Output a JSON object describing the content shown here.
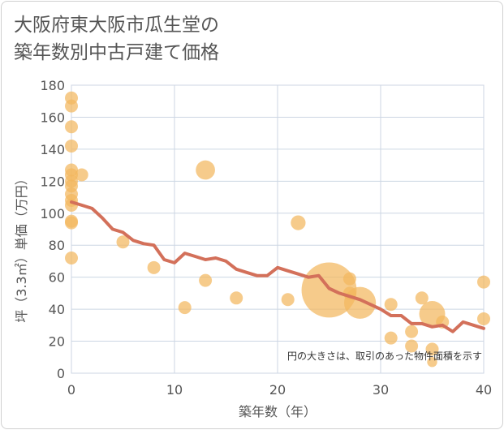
{
  "title_lines": [
    "大阪府東大阪市瓜生堂の",
    "築年数別中古戸建て価格"
  ],
  "chart_data": {
    "type": "scatter",
    "title": "大阪府東大阪市瓜生堂の築年数別中古戸建て価格",
    "xlabel": "築年数（年）",
    "ylabel": "坪（3.3㎡）単価（万円）",
    "xlim": [
      0,
      40
    ],
    "ylim": [
      0,
      180
    ],
    "x_ticks": [
      0,
      10,
      20,
      30,
      40
    ],
    "y_ticks": [
      0,
      20,
      40,
      60,
      80,
      100,
      120,
      140,
      160,
      180
    ],
    "grid": true,
    "note": "円の大きさは、取引のあった物件面積を示す",
    "colors": {
      "bubble": "#f3b75e",
      "line": "#d3705a"
    },
    "points": [
      {
        "x": 0,
        "y": 172,
        "s": 1
      },
      {
        "x": 0,
        "y": 167,
        "s": 1
      },
      {
        "x": 0,
        "y": 154,
        "s": 1
      },
      {
        "x": 0,
        "y": 142,
        "s": 1
      },
      {
        "x": 0,
        "y": 127,
        "s": 1
      },
      {
        "x": 0,
        "y": 124,
        "s": 1
      },
      {
        "x": 0,
        "y": 120,
        "s": 1
      },
      {
        "x": 0,
        "y": 117,
        "s": 1
      },
      {
        "x": 0,
        "y": 112,
        "s": 1
      },
      {
        "x": 0,
        "y": 108,
        "s": 1
      },
      {
        "x": 0,
        "y": 105,
        "s": 1
      },
      {
        "x": 0,
        "y": 95,
        "s": 1
      },
      {
        "x": 0,
        "y": 94,
        "s": 1
      },
      {
        "x": 0,
        "y": 72,
        "s": 1
      },
      {
        "x": 1,
        "y": 124,
        "s": 1
      },
      {
        "x": 5,
        "y": 82,
        "s": 1
      },
      {
        "x": 8,
        "y": 66,
        "s": 1
      },
      {
        "x": 11,
        "y": 41,
        "s": 1
      },
      {
        "x": 13,
        "y": 127,
        "s": 2.2
      },
      {
        "x": 13,
        "y": 58,
        "s": 1
      },
      {
        "x": 16,
        "y": 47,
        "s": 1
      },
      {
        "x": 21,
        "y": 46,
        "s": 1
      },
      {
        "x": 22,
        "y": 94,
        "s": 1.3
      },
      {
        "x": 25,
        "y": 52,
        "s": 18
      },
      {
        "x": 27,
        "y": 59,
        "s": 1
      },
      {
        "x": 27,
        "y": 50,
        "s": 1
      },
      {
        "x": 28,
        "y": 44,
        "s": 6
      },
      {
        "x": 31,
        "y": 43,
        "s": 1
      },
      {
        "x": 31,
        "y": 22,
        "s": 1
      },
      {
        "x": 33,
        "y": 26,
        "s": 1
      },
      {
        "x": 33,
        "y": 17,
        "s": 1
      },
      {
        "x": 34,
        "y": 47,
        "s": 1
      },
      {
        "x": 35,
        "y": 37,
        "s": 4
      },
      {
        "x": 35,
        "y": 15,
        "s": 1
      },
      {
        "x": 35,
        "y": 7,
        "s": 0.6
      },
      {
        "x": 36,
        "y": 32,
        "s": 1
      },
      {
        "x": 40,
        "y": 57,
        "s": 1
      },
      {
        "x": 40,
        "y": 34,
        "s": 1
      }
    ],
    "trend": {
      "x": [
        0,
        1,
        2,
        3,
        4,
        5,
        6,
        7,
        8,
        9,
        10,
        11,
        12,
        13,
        14,
        15,
        16,
        17,
        18,
        19,
        20,
        21,
        22,
        23,
        24,
        25,
        26,
        27,
        28,
        29,
        30,
        31,
        32,
        33,
        34,
        35,
        36,
        37,
        38,
        39,
        40
      ],
      "y": [
        107,
        105,
        103,
        97,
        90,
        88,
        83,
        81,
        80,
        71,
        69,
        75,
        73,
        71,
        72,
        70,
        65,
        63,
        61,
        61,
        66,
        64,
        62,
        60,
        61,
        53,
        50,
        48,
        46,
        43,
        40,
        36,
        36,
        31,
        31,
        29,
        30,
        26,
        32,
        30,
        28
      ]
    }
  }
}
